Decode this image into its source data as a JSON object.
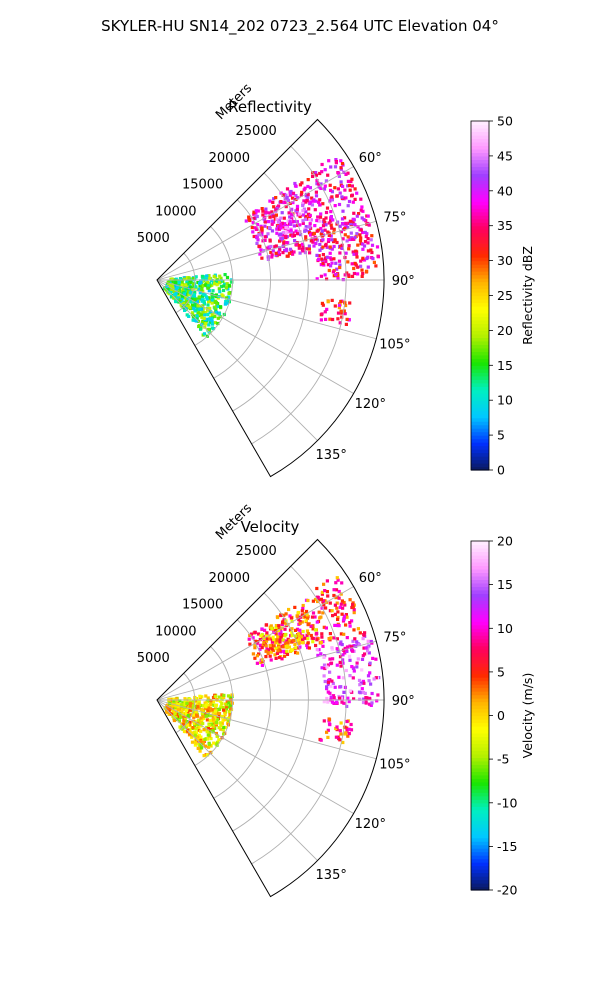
{
  "figure": {
    "suptitle": "SKYLER-HU  SN14_202  0723_2.564 UTC Elevation 04°"
  },
  "chart_data": [
    {
      "type": "heatmap",
      "projection": "polar-sector",
      "title": "Reflectivity",
      "range_label": "Meters",
      "range_ticks": [
        "5000",
        "10000",
        "15000",
        "20000",
        "25000"
      ],
      "range_values": [
        5000,
        10000,
        15000,
        20000,
        25000
      ],
      "rmax": 30000,
      "theta_range_deg": [
        45,
        150
      ],
      "theta_ticks": [
        "60°",
        "75°",
        "90°",
        "105°",
        "120°",
        "135°"
      ],
      "theta_values": [
        60,
        75,
        90,
        105,
        120,
        135
      ],
      "grid": true,
      "colorbar": {
        "label": "Reflectivity dBZ",
        "min": 0,
        "max": 50,
        "ticks": [
          "0",
          "5",
          "10",
          "15",
          "20",
          "25",
          "30",
          "35",
          "40",
          "45",
          "50"
        ],
        "colormap": [
          "#0b1a5c",
          "#0030ff",
          "#00c8ff",
          "#00f0c0",
          "#1ae600",
          "#b4f000",
          "#ffff00",
          "#ffb400",
          "#ff2a00",
          "#ff0060",
          "#ff00ff",
          "#a040ff",
          "#ff99ff",
          "#fff0ff"
        ]
      },
      "echo_regions": [
        {
          "r0": 14000,
          "r1": 29000,
          "t0": 55,
          "t1": 80,
          "value": 37
        },
        {
          "r0": 21000,
          "r1": 29500,
          "t0": 73,
          "t1": 90,
          "value": 36
        },
        {
          "r0": 17000,
          "r1": 23000,
          "t0": 62,
          "t1": 72,
          "value": 41
        },
        {
          "r0": 22000,
          "r1": 26000,
          "t0": 96,
          "t1": 104,
          "value": 33
        },
        {
          "r0": 1500,
          "r1": 10000,
          "t0": 85,
          "t1": 140,
          "value": 14
        }
      ]
    },
    {
      "type": "heatmap",
      "projection": "polar-sector",
      "title": "Velocity",
      "range_label": "Meters",
      "range_ticks": [
        "5000",
        "10000",
        "15000",
        "20000",
        "25000"
      ],
      "range_values": [
        5000,
        10000,
        15000,
        20000,
        25000
      ],
      "rmax": 30000,
      "theta_range_deg": [
        45,
        150
      ],
      "theta_ticks": [
        "60°",
        "75°",
        "90°",
        "105°",
        "120°",
        "135°"
      ],
      "theta_values": [
        60,
        75,
        90,
        105,
        120,
        135
      ],
      "grid": true,
      "colorbar": {
        "label": "Velocity (m/s)",
        "min": -20,
        "max": 20,
        "ticks": [
          "-20",
          "-15",
          "-10",
          "-5",
          "0",
          "5",
          "10",
          "15",
          "20"
        ],
        "colormap": [
          "#0b1a5c",
          "#0030ff",
          "#00c8ff",
          "#00f0c0",
          "#1ae600",
          "#b4f000",
          "#ffff00",
          "#ffb400",
          "#ff2a00",
          "#ff0060",
          "#ff00ff",
          "#a040ff",
          "#ff99ff",
          "#fff0ff"
        ]
      },
      "echo_regions": [
        {
          "r0": 14000,
          "r1": 29000,
          "t0": 55,
          "t1": 72,
          "value": 6
        },
        {
          "r0": 22000,
          "r1": 29500,
          "t0": 72,
          "t1": 92,
          "value": 13
        },
        {
          "r0": 16000,
          "r1": 23000,
          "t0": 58,
          "t1": 70,
          "value": 2
        },
        {
          "r0": 22000,
          "r1": 26000,
          "t0": 96,
          "t1": 104,
          "value": 5
        },
        {
          "r0": 1500,
          "r1": 10000,
          "t0": 85,
          "t1": 140,
          "value": -1
        }
      ]
    }
  ]
}
